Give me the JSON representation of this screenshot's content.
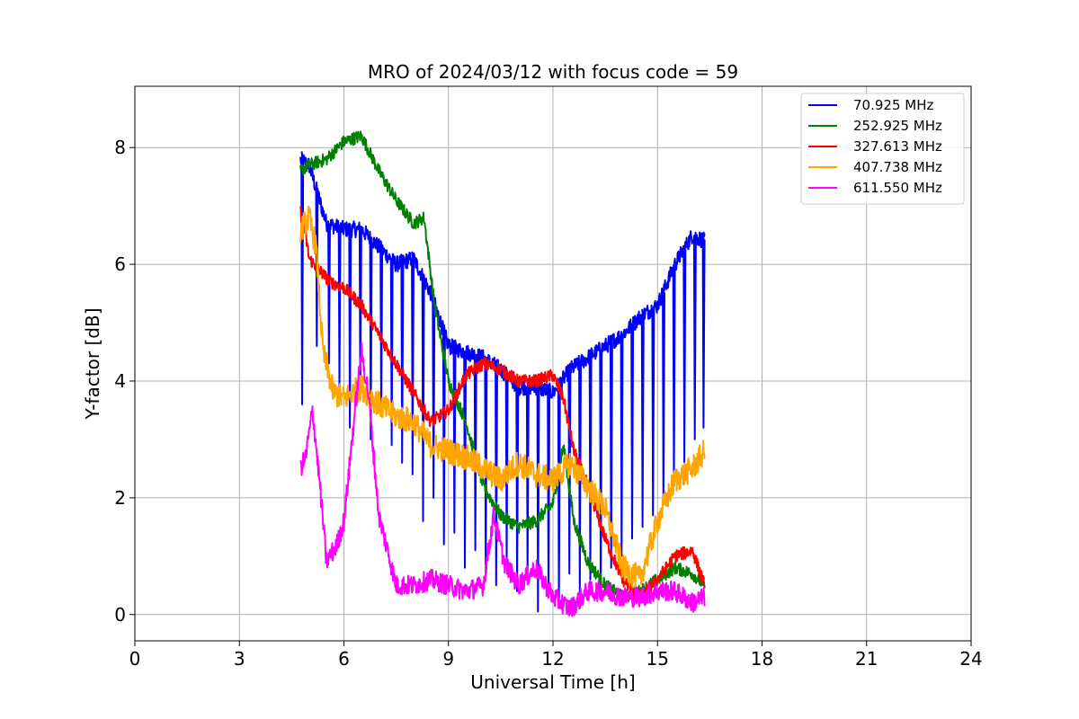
{
  "chart_data": {
    "type": "line",
    "title": "MRO of 2024/03/12 with focus code = 59",
    "xlabel": "Universal Time [h]",
    "ylabel": "Y-factor [dB]",
    "xlim": [
      0,
      24
    ],
    "ylim": [
      -0.45,
      9.05
    ],
    "xticks": [
      0,
      3,
      6,
      9,
      12,
      15,
      18,
      21,
      24
    ],
    "yticks": [
      0,
      2,
      4,
      6,
      8
    ],
    "grid": true,
    "legend_position": "top-right",
    "series": [
      {
        "name": "70.925 MHz",
        "color": "#0000ff",
        "x": [
          4.75,
          5.0,
          5.5,
          6.0,
          6.5,
          7.0,
          7.5,
          8.0,
          8.5,
          9.0,
          9.5,
          10.0,
          10.5,
          11.0,
          11.5,
          12.0,
          12.5,
          13.0,
          13.5,
          14.0,
          14.5,
          15.0,
          15.5,
          16.0,
          16.35
        ],
        "y": [
          7.8,
          7.7,
          6.7,
          6.6,
          6.6,
          6.3,
          6.0,
          6.1,
          5.5,
          4.6,
          4.5,
          4.4,
          4.2,
          3.9,
          3.9,
          3.8,
          4.2,
          4.4,
          4.6,
          4.8,
          5.1,
          5.3,
          6.0,
          6.5,
          6.4
        ],
        "dips": [
          {
            "x": 4.78,
            "y": 3.6
          },
          {
            "x": 5.2,
            "y": 4.6
          },
          {
            "x": 5.55,
            "y": 4.3
          },
          {
            "x": 5.85,
            "y": 3.9
          },
          {
            "x": 6.15,
            "y": 3.2
          },
          {
            "x": 6.45,
            "y": 3.7
          },
          {
            "x": 6.75,
            "y": 3.0
          },
          {
            "x": 7.05,
            "y": 3.4
          },
          {
            "x": 7.35,
            "y": 2.9
          },
          {
            "x": 7.65,
            "y": 2.6
          },
          {
            "x": 7.95,
            "y": 2.4
          },
          {
            "x": 8.25,
            "y": 1.6
          },
          {
            "x": 8.55,
            "y": 2.0
          },
          {
            "x": 8.85,
            "y": 1.2
          },
          {
            "x": 9.15,
            "y": 1.4
          },
          {
            "x": 9.45,
            "y": 0.8
          },
          {
            "x": 9.75,
            "y": 1.1
          },
          {
            "x": 10.05,
            "y": 0.7
          },
          {
            "x": 10.35,
            "y": 0.5
          },
          {
            "x": 10.65,
            "y": 0.9
          },
          {
            "x": 10.95,
            "y": 0.4
          },
          {
            "x": 11.25,
            "y": 0.6
          },
          {
            "x": 11.55,
            "y": 0.05
          },
          {
            "x": 11.85,
            "y": 0.3
          },
          {
            "x": 12.15,
            "y": 0.2
          },
          {
            "x": 12.45,
            "y": 0.7
          },
          {
            "x": 12.75,
            "y": 0.3
          },
          {
            "x": 13.05,
            "y": 0.6
          },
          {
            "x": 13.35,
            "y": 0.4
          },
          {
            "x": 13.65,
            "y": 0.8
          },
          {
            "x": 13.95,
            "y": 1.0
          },
          {
            "x": 14.25,
            "y": 1.3
          },
          {
            "x": 14.55,
            "y": 1.5
          },
          {
            "x": 14.85,
            "y": 1.7
          },
          {
            "x": 15.15,
            "y": 1.9
          },
          {
            "x": 15.45,
            "y": 2.2
          },
          {
            "x": 15.75,
            "y": 2.6
          },
          {
            "x": 16.05,
            "y": 3.0
          },
          {
            "x": 16.3,
            "y": 3.2
          }
        ]
      },
      {
        "name": "252.925 MHz",
        "color": "#008000",
        "x": [
          4.75,
          5.0,
          5.5,
          6.0,
          6.5,
          7.0,
          7.5,
          8.0,
          8.3,
          8.6,
          9.0,
          9.5,
          10.0,
          10.5,
          11.0,
          11.5,
          12.0,
          12.3,
          12.6,
          13.0,
          13.5,
          14.0,
          14.5,
          15.0,
          15.5,
          16.0,
          16.35
        ],
        "y": [
          7.6,
          7.7,
          7.8,
          8.1,
          8.2,
          7.6,
          7.1,
          6.7,
          6.8,
          5.3,
          4.0,
          3.3,
          2.2,
          1.7,
          1.5,
          1.6,
          1.9,
          2.9,
          1.6,
          0.9,
          0.5,
          0.3,
          0.4,
          0.6,
          0.8,
          0.7,
          0.5
        ],
        "dips": []
      },
      {
        "name": "327.613 MHz",
        "color": "#ff0000",
        "x": [
          4.75,
          4.9,
          5.0,
          5.3,
          5.6,
          6.0,
          6.5,
          7.0,
          7.5,
          8.0,
          8.5,
          9.0,
          9.5,
          10.0,
          10.5,
          11.0,
          11.5,
          12.0,
          12.3,
          12.6,
          13.0,
          13.5,
          14.0,
          14.5,
          15.0,
          15.5,
          16.0,
          16.35
        ],
        "y": [
          6.9,
          6.5,
          6.1,
          5.9,
          5.7,
          5.6,
          5.3,
          4.8,
          4.3,
          3.8,
          3.3,
          3.5,
          4.1,
          4.3,
          4.2,
          4.0,
          4.0,
          4.1,
          3.7,
          2.8,
          2.2,
          1.3,
          0.6,
          0.3,
          0.6,
          1.0,
          1.1,
          0.5
        ],
        "dips": []
      },
      {
        "name": "407.738 MHz",
        "color": "#ffa500",
        "x": [
          4.75,
          5.0,
          5.2,
          5.4,
          5.7,
          6.0,
          6.5,
          7.0,
          7.5,
          8.0,
          8.5,
          9.0,
          9.5,
          10.0,
          10.5,
          11.0,
          11.5,
          12.0,
          12.5,
          13.0,
          13.5,
          14.0,
          14.5,
          15.0,
          15.5,
          16.0,
          16.35
        ],
        "y": [
          6.6,
          6.8,
          6.3,
          4.5,
          3.8,
          3.7,
          3.9,
          3.6,
          3.4,
          3.3,
          2.9,
          2.8,
          2.7,
          2.5,
          2.3,
          2.6,
          2.4,
          2.3,
          2.6,
          2.2,
          1.8,
          0.8,
          0.6,
          1.6,
          2.3,
          2.5,
          2.8
        ],
        "dips": []
      },
      {
        "name": "611.550 MHz",
        "color": "#ff00ff",
        "x": [
          4.75,
          4.9,
          5.1,
          5.3,
          5.5,
          5.8,
          6.0,
          6.3,
          6.5,
          6.7,
          7.0,
          7.5,
          8.0,
          8.5,
          9.0,
          9.5,
          10.0,
          10.3,
          10.6,
          11.0,
          11.5,
          12.0,
          12.5,
          13.0,
          13.5,
          14.0,
          14.5,
          15.0,
          15.5,
          16.0,
          16.35
        ],
        "y": [
          2.5,
          2.7,
          3.5,
          2.3,
          0.9,
          1.2,
          1.6,
          3.4,
          4.5,
          3.8,
          1.7,
          0.5,
          0.5,
          0.6,
          0.5,
          0.4,
          0.5,
          1.7,
          0.9,
          0.5,
          0.8,
          0.3,
          0.1,
          0.4,
          0.4,
          0.3,
          0.3,
          0.4,
          0.4,
          0.2,
          0.3
        ],
        "dips": []
      }
    ]
  }
}
